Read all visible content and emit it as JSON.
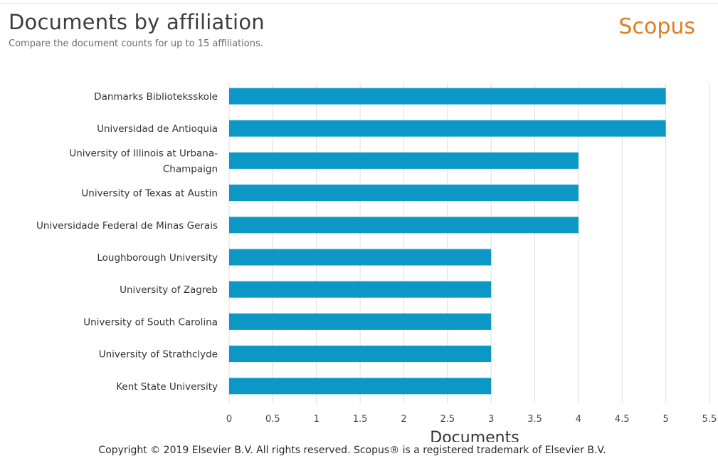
{
  "header": {
    "title": "Documents by affiliation",
    "subtitle": "Compare the document counts for up to 15 affiliations.",
    "brand": "Scopus"
  },
  "footer": {
    "copyright": "Copyright © 2019 Elsevier B.V. All rights reserved. Scopus® is a registered trademark of Elsevier B.V."
  },
  "colors": {
    "bar": "#0c97c7",
    "grid": "#dedede",
    "brand": "#e37b22"
  },
  "chart_data": {
    "type": "bar",
    "orientation": "horizontal",
    "title": "Documents by affiliation",
    "subtitle": "Compare the document counts for up to 15 affiliations.",
    "xlabel": "Documents",
    "ylabel": "",
    "categories": [
      "Danmarks Biblioteksskole",
      "Universidad de Antioquia",
      "University of Illinois at Urbana-Champaign",
      "University of Texas at Austin",
      "Universidade Federal de Minas Gerais",
      "Loughborough University",
      "University of Zagreb",
      "University of South Carolina",
      "University of Strathclyde",
      "Kent State University"
    ],
    "category_lines": [
      [
        "Danmarks Biblioteksskole"
      ],
      [
        "Universidad de Antioquia"
      ],
      [
        "University of Illinois at Urbana-",
        "Champaign"
      ],
      [
        "University of Texas at Austin"
      ],
      [
        "Universidade Federal de Minas Gerais"
      ],
      [
        "Loughborough University"
      ],
      [
        "University of Zagreb"
      ],
      [
        "University of South Carolina"
      ],
      [
        "University of Strathclyde"
      ],
      [
        "Kent State University"
      ]
    ],
    "values": [
      5,
      5,
      4,
      4,
      4,
      3,
      3,
      3,
      3,
      3
    ],
    "xlim": [
      0,
      5.5
    ],
    "xticks": [
      0,
      0.5,
      1,
      1.5,
      2,
      2.5,
      3,
      3.5,
      4,
      4.5,
      5,
      5.5
    ],
    "xtick_labels": [
      "0",
      "0.5",
      "1",
      "1.5",
      "2",
      "2.5",
      "3",
      "3.5",
      "4",
      "4.5",
      "5",
      "5.5"
    ],
    "grid": true,
    "legend": "none"
  }
}
